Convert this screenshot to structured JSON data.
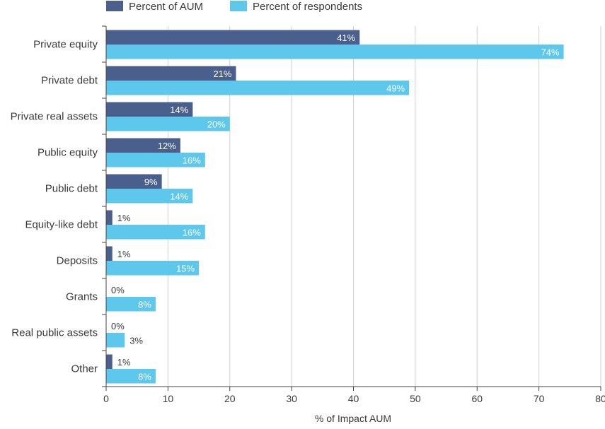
{
  "chart_data": {
    "type": "bar",
    "orientation": "horizontal",
    "categories": [
      "Private equity",
      "Private debt",
      "Private real assets",
      "Public equity",
      "Public debt",
      "Equity-like debt",
      "Deposits",
      "Grants",
      "Real public assets",
      "Other"
    ],
    "series": [
      {
        "name": "Percent of AUM",
        "values": [
          41,
          21,
          14,
          12,
          9,
          1,
          1,
          0,
          0,
          1
        ],
        "labels": [
          "41%",
          "21%",
          "14%",
          "12%",
          "9%",
          "1%",
          "1%",
          "0%",
          "0%",
          "1%"
        ]
      },
      {
        "name": "Percent of respondents",
        "values": [
          74,
          49,
          20,
          16,
          14,
          16,
          15,
          8,
          3,
          8
        ],
        "labels": [
          "74%",
          "49%",
          "20%",
          "16%",
          "14%",
          "16%",
          "15%",
          "8%",
          "3%",
          "8%"
        ]
      }
    ],
    "xlabel": "% of Impact AUM",
    "ylabel": "",
    "xlim": [
      0,
      80
    ],
    "xticks": [
      0,
      10,
      20,
      30,
      40,
      50,
      60,
      70,
      80
    ],
    "grid": "vertical",
    "legend": "top-left",
    "colors": {
      "series0": "#4b5f8c",
      "series1": "#5ec8ec",
      "grid": "#d0d0d0",
      "axis": "#444444",
      "text": "#3a3a3a"
    }
  }
}
